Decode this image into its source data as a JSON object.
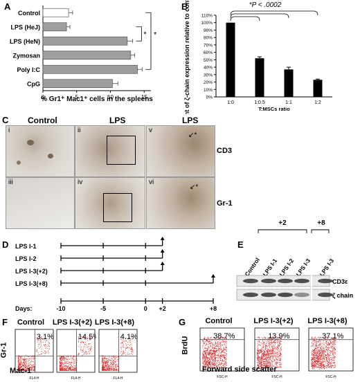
{
  "panels": {
    "A": {
      "label": "A",
      "chart_data": {
        "type": "bar",
        "orientation": "horizontal",
        "categories": [
          "Control",
          "LPS (HeJ)",
          "LPS (HeN)",
          "Zymosan",
          "Poly I:C",
          "CpG"
        ],
        "values": [
          3.8,
          3.5,
          12.5,
          13.0,
          14.0,
          10.3
        ],
        "errors": [
          0.6,
          0.5,
          0.8,
          0.6,
          0.7,
          0.8
        ],
        "bar_colors": [
          "#ffffff",
          "#9e9e9e",
          "#9e9e9e",
          "#9e9e9e",
          "#9e9e9e",
          "#9e9e9e"
        ],
        "xticks": [
          "0",
          "5",
          "10",
          "15"
        ],
        "xlim": [
          0,
          16
        ],
        "xlabel": "% Gr1⁺ Mac1⁺ cells in the spleens",
        "annotations": [
          "*",
          "*"
        ]
      }
    },
    "B": {
      "label": "B",
      "chart_data": {
        "type": "bar",
        "categories": [
          "1:0",
          "1:0.5",
          "1:1",
          "1:2"
        ],
        "values": [
          100,
          52,
          37,
          23
        ],
        "errors": [
          0,
          2,
          3,
          1
        ],
        "yticks": [
          "0%",
          "10%",
          "20%",
          "30%",
          "40%",
          "50%",
          "60%",
          "70%",
          "80%",
          "90%",
          "100%",
          "110%"
        ],
        "ylim": [
          0,
          110
        ],
        "ylabel": "Percent of ζ-chain expression relative to control",
        "xlabel": "T:MSCs ratio",
        "significance": "*P < .0002",
        "bar_color": "#000000"
      }
    },
    "C": {
      "label": "C",
      "col_headers": [
        "Control",
        "LPS",
        "LPS"
      ],
      "tiles": [
        "i",
        "ii",
        "v",
        "iii",
        "iv",
        "vi"
      ],
      "row_labels": [
        "CD3",
        "Gr-1"
      ]
    },
    "D": {
      "label": "D",
      "rows": [
        "LPS I-1",
        "LPS I-2",
        "LPS I-3(+2)",
        "LPS I-3(+8)"
      ],
      "axis_title": "Days:",
      "ticks": [
        "-10",
        "-5",
        "0",
        "+2",
        "+8"
      ]
    },
    "E": {
      "label": "E",
      "groups": [
        "+2",
        "+8"
      ],
      "lanes": [
        "Control",
        "LPS I-1",
        "LPS I-2",
        "LPS I-3",
        "LPS I-3"
      ],
      "bands": [
        "CD3ε",
        "ζ chain"
      ]
    },
    "F": {
      "label": "F",
      "plots": [
        {
          "title": "Control",
          "pct": "3.1%"
        },
        {
          "title": "LPS I-3(+2)",
          "pct": "14.5%"
        },
        {
          "title": "LPS I-3(+8)",
          "pct": "4.1%"
        }
      ],
      "yaxis": "Gr-1",
      "xaxis": "Mac-1",
      "axis_small": "FL4-H"
    },
    "G": {
      "label": "G",
      "plots": [
        {
          "title": "Control",
          "pct": "38.7%"
        },
        {
          "title": "LPS I-3(+2)",
          "pct": "13.9%"
        },
        {
          "title": "LPS I-3(+8)",
          "pct": "37.1%"
        }
      ],
      "yaxis": "BrdU",
      "xaxis": "Forward side scatter",
      "axis_small": "FSC-H"
    }
  }
}
